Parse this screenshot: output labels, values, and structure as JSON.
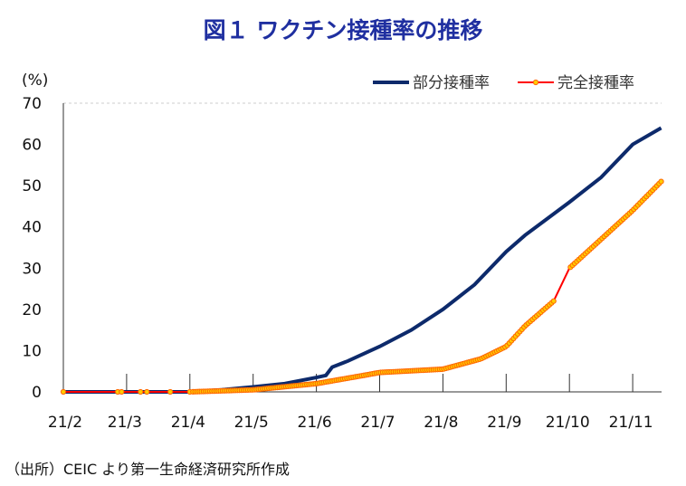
{
  "chart_data": {
    "type": "line",
    "title": "図１ ワクチン接種率の推移",
    "ylabel": "(%)",
    "xlabel": "",
    "ylim": [
      0,
      70
    ],
    "yticks": [
      0,
      10,
      20,
      30,
      40,
      50,
      60,
      70
    ],
    "xlim": [
      0,
      9.45
    ],
    "xticks": [
      0,
      1,
      2,
      3,
      4,
      5,
      6,
      7,
      8,
      9
    ],
    "xticklabels": [
      "21/2",
      "21/3",
      "21/4",
      "21/5",
      "21/6",
      "21/7",
      "21/8",
      "21/9",
      "21/10",
      "21/11"
    ],
    "grid": "horizontal dashed at top only",
    "legend_position": "top-right",
    "series": [
      {
        "name": "部分接種率",
        "color": "#0d2a6b",
        "x": [
          0,
          2.0,
          2.5,
          3.0,
          3.5,
          4.0,
          4.15,
          4.25,
          4.5,
          5.0,
          5.5,
          6.0,
          6.5,
          7.0,
          7.3,
          8.0,
          8.5,
          9.0,
          9.45
        ],
        "y": [
          0,
          0,
          0.5,
          1.2,
          2.0,
          3.5,
          4.0,
          6.0,
          7.5,
          11,
          15,
          20,
          26,
          34,
          38,
          46,
          52,
          60,
          64
        ]
      },
      {
        "name": "完全接種率",
        "color": "#ff0000",
        "marker": "#ffcc00",
        "x": [
          0,
          0.86,
          0.92,
          1.22,
          1.32,
          1.69,
          2.0,
          3.0,
          4.0,
          4.75,
          5.0,
          6.0,
          6.6,
          7.0,
          7.3,
          7.75,
          8.0,
          8.5,
          9.0,
          9.45
        ],
        "y": [
          0,
          0,
          0,
          0,
          0,
          0,
          0,
          0.5,
          2.0,
          4.0,
          4.7,
          5.5,
          8,
          11,
          16,
          22,
          30,
          37,
          44,
          51
        ]
      }
    ]
  },
  "source": "（出所）CEIC より第一生命経済研究所作成"
}
